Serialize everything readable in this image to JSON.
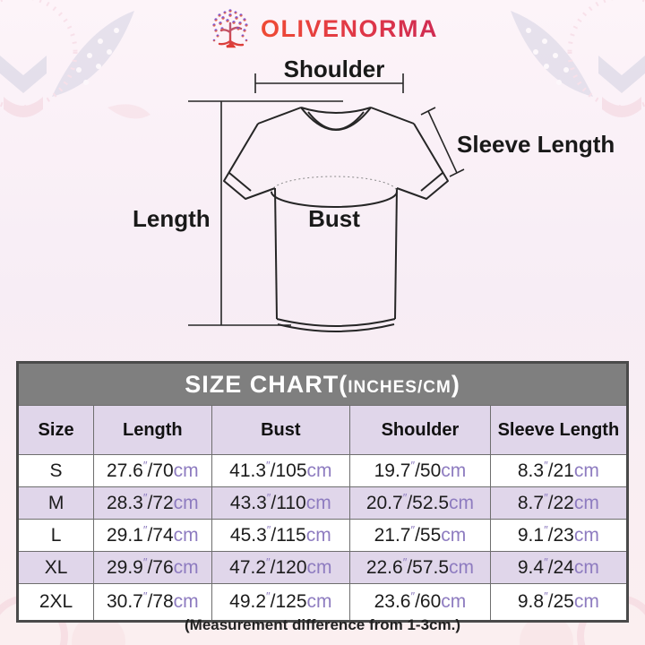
{
  "brand": {
    "name": "OLIVENORMA",
    "icon": "tree-icon"
  },
  "diagram": {
    "shoulder_label": "Shoulder",
    "sleeve_length_label": "Sleeve Length",
    "length_label": "Length",
    "bust_label": "Bust"
  },
  "size_chart": {
    "title_main": "SIZE CHART(",
    "title_unit": "INCHES/CM",
    "title_close": ")",
    "columns": [
      "Size",
      "Length",
      "Bust",
      "Shoulder",
      "Sleeve Length"
    ],
    "separator": "/",
    "unit_inch_mark": "″",
    "unit_cm": "cm",
    "rows": [
      {
        "size": "S",
        "values": [
          {
            "in": "27.6",
            "cm": "70"
          },
          {
            "in": "41.3",
            "cm": "105"
          },
          {
            "in": "19.7",
            "cm": "50"
          },
          {
            "in": "8.3",
            "cm": "21"
          }
        ]
      },
      {
        "size": "M",
        "values": [
          {
            "in": "28.3",
            "cm": "72"
          },
          {
            "in": "43.3",
            "cm": "110"
          },
          {
            "in": "20.7",
            "cm": "52.5"
          },
          {
            "in": "8.7",
            "cm": "22"
          }
        ]
      },
      {
        "size": "L",
        "values": [
          {
            "in": "29.1",
            "cm": "74"
          },
          {
            "in": "45.3",
            "cm": "115"
          },
          {
            "in": "21.7",
            "cm": "55"
          },
          {
            "in": "9.1",
            "cm": "23"
          }
        ]
      },
      {
        "size": "XL",
        "values": [
          {
            "in": "29.9",
            "cm": "76"
          },
          {
            "in": "47.2",
            "cm": "120"
          },
          {
            "in": "22.6",
            "cm": "57.5"
          },
          {
            "in": "9.4",
            "cm": "24"
          }
        ]
      },
      {
        "size": "2XL",
        "values": [
          {
            "in": "30.7",
            "cm": "78"
          },
          {
            "in": "49.2",
            "cm": "125"
          },
          {
            "in": "23.6",
            "cm": "60"
          },
          {
            "in": "9.8",
            "cm": "25"
          }
        ]
      }
    ]
  },
  "footer_note": "(Measurement difference from 1-3cm.)",
  "colors": {
    "brand_red": "#d93a4e",
    "table_title_bg": "#7f7f7f",
    "row_lavender": "#e0d6ea",
    "unit_purple": "#8e7cc0"
  }
}
